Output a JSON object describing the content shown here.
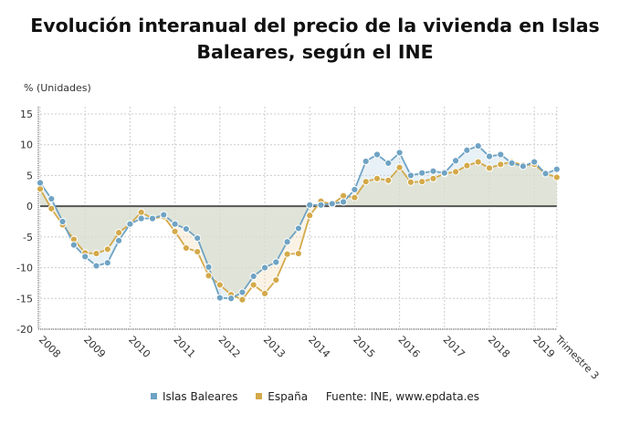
{
  "chart_data": {
    "type": "line",
    "title": "Evolución interanual del precio de la vivienda en Islas Baleares, según el INE",
    "ylabel": "% (Unidades)",
    "ylim": [
      -20,
      15
    ],
    "yticks": [
      15,
      10,
      5,
      0,
      -5,
      -10,
      -15,
      -20
    ],
    "xticks": [
      "2008",
      "2009",
      "2010",
      "2011",
      "2012",
      "2013",
      "2014",
      "2015",
      "2016",
      "2017",
      "2018",
      "2019",
      "Trimestre 3"
    ],
    "x_start": "2008 T1",
    "x_end": "2019 T3",
    "frequency": "quarterly",
    "grid": true,
    "legend_position": "bottom",
    "series": [
      {
        "name": "Islas Baleares",
        "color": "#6fa3c4",
        "values": [
          3.8,
          1.2,
          -2.5,
          -6.3,
          -8.2,
          -9.7,
          -9.2,
          -5.6,
          -2.9,
          -2.0,
          -2.0,
          -1.4,
          -2.9,
          -3.7,
          -5.2,
          -9.9,
          -14.9,
          -15.0,
          -14.0,
          -11.4,
          -10.0,
          -9.1,
          -5.8,
          -3.6,
          0.2,
          0.2,
          0.4,
          0.7,
          2.7,
          7.3,
          8.4,
          7.0,
          8.7,
          5.0,
          5.4,
          5.7,
          5.4,
          7.4,
          9.1,
          9.8,
          8.1,
          8.4,
          7.0,
          6.5,
          7.2,
          5.3,
          6.0
        ]
      },
      {
        "name": "España",
        "color": "#d4a94a",
        "values": [
          2.8,
          -0.4,
          -3.0,
          -5.4,
          -7.6,
          -7.7,
          -7.0,
          -4.3,
          -2.9,
          -1.0,
          -2.0,
          -1.7,
          -4.1,
          -6.8,
          -7.4,
          -11.3,
          -12.8,
          -14.4,
          -15.2,
          -12.8,
          -14.2,
          -12.0,
          -7.8,
          -7.7,
          -1.5,
          0.8,
          0.3,
          1.7,
          1.4,
          4.0,
          4.5,
          4.2,
          6.3,
          3.9,
          4.0,
          4.5,
          5.3,
          5.6,
          6.6,
          7.2,
          6.2,
          6.8,
          7.2,
          6.7,
          6.8,
          5.3,
          4.7
        ]
      }
    ],
    "source": "Fuente: INE, www.epdata.es"
  }
}
